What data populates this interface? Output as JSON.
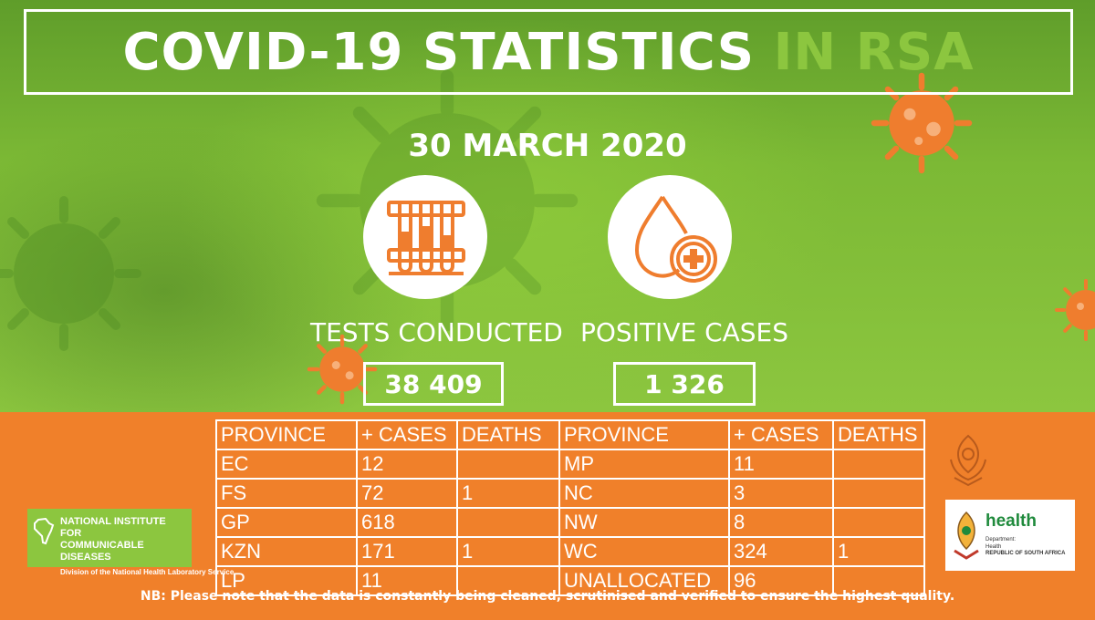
{
  "header": {
    "title_main": "COVID-19 STATISTICS",
    "title_accent": "IN RSA",
    "date": "30 MARCH 2020"
  },
  "stats": {
    "tests_label": "TESTS CONDUCTED",
    "tests_value": "38 409",
    "cases_label": "POSITIVE CASES",
    "cases_value": "1 326"
  },
  "table": {
    "headers": [
      "PROVINCE",
      "+ CASES",
      "DEATHS",
      "PROVINCE",
      "+ CASES",
      "DEATHS"
    ],
    "rows": [
      [
        "EC",
        "12",
        "",
        "MP",
        "11",
        ""
      ],
      [
        "FS",
        "72",
        "1",
        "NC",
        "3",
        ""
      ],
      [
        "GP",
        "618",
        "",
        "NW",
        "8",
        ""
      ],
      [
        "KZN",
        "171",
        "1",
        "WC",
        "324",
        "1"
      ],
      [
        "LP",
        "11",
        "",
        "UNALLOCATED",
        "96",
        ""
      ]
    ]
  },
  "logos": {
    "nicd_line1": "NATIONAL INSTITUTE FOR",
    "nicd_line2": "COMMUNICABLE DISEASES",
    "nicd_sub": "Division of the National Health Laboratory Service",
    "health_title": "health",
    "health_dept": "Department:",
    "health_health": "Health",
    "health_rsa": "REPUBLIC OF SOUTH AFRICA"
  },
  "footer": {
    "note": "NB: Please note that the data is constantly being cleaned, scrutinised and verified to ensure the highest quality."
  },
  "colors": {
    "green": "#8cc63f",
    "orange": "#f0802a",
    "white": "#ffffff"
  },
  "icons": [
    "test-tubes-icon",
    "blood-drop-plus-icon",
    "virus-icon"
  ]
}
